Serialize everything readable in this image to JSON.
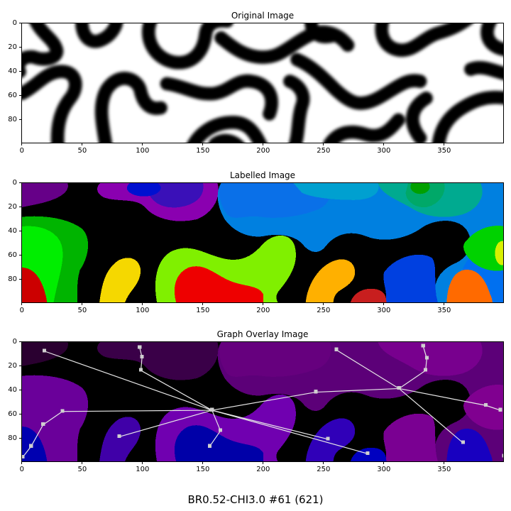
{
  "panels": {
    "original": {
      "title": "Original Image"
    },
    "labelled": {
      "title": "Labelled Image"
    },
    "graph": {
      "title": "Graph Overlay Image"
    }
  },
  "axes": {
    "x_ticks": [
      0,
      50,
      100,
      150,
      200,
      250,
      300,
      350
    ],
    "y_ticks": [
      0,
      20,
      40,
      60,
      80
    ],
    "x_range": [
      0,
      399
    ],
    "y_range": [
      0,
      99
    ]
  },
  "caption": "BR0.52-CHI3.0 #61 (621)",
  "graph_nodes": [
    {
      "x": 18,
      "y": 7
    },
    {
      "x": 97,
      "y": 4
    },
    {
      "x": 99,
      "y": 12
    },
    {
      "x": 98,
      "y": 23
    },
    {
      "x": 33,
      "y": 57
    },
    {
      "x": 17,
      "y": 68
    },
    {
      "x": 7,
      "y": 86
    },
    {
      "x": 0,
      "y": 95
    },
    {
      "x": 157,
      "y": 56
    },
    {
      "x": 164,
      "y": 73
    },
    {
      "x": 155,
      "y": 86
    },
    {
      "x": 80,
      "y": 78
    },
    {
      "x": 253,
      "y": 80
    },
    {
      "x": 286,
      "y": 92
    },
    {
      "x": 243,
      "y": 41
    },
    {
      "x": 260,
      "y": 6
    },
    {
      "x": 312,
      "y": 38
    },
    {
      "x": 332,
      "y": 3
    },
    {
      "x": 335,
      "y": 13
    },
    {
      "x": 334,
      "y": 23
    },
    {
      "x": 365,
      "y": 83
    },
    {
      "x": 384,
      "y": 52
    },
    {
      "x": 396,
      "y": 56
    },
    {
      "x": 399,
      "y": 94
    }
  ],
  "graph_edges": [
    [
      0,
      8
    ],
    [
      1,
      2
    ],
    [
      2,
      3
    ],
    [
      3,
      8
    ],
    [
      4,
      8
    ],
    [
      4,
      5
    ],
    [
      5,
      6
    ],
    [
      6,
      7
    ],
    [
      8,
      9
    ],
    [
      9,
      10
    ],
    [
      8,
      11
    ],
    [
      8,
      12
    ],
    [
      8,
      13
    ],
    [
      8,
      14
    ],
    [
      14,
      16
    ],
    [
      15,
      16
    ],
    [
      16,
      19
    ],
    [
      17,
      18
    ],
    [
      18,
      19
    ],
    [
      16,
      20
    ],
    [
      16,
      21
    ],
    [
      21,
      22
    ]
  ]
}
